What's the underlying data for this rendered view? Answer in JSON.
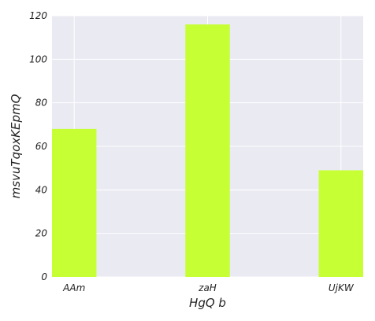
{
  "chart_data": {
    "type": "bar",
    "categories": [
      "AAm",
      "zaH",
      "UjKW"
    ],
    "values": [
      68,
      116,
      49
    ],
    "xlabel": "HgQ b",
    "ylabel": "msvuTqoxKEpmQ",
    "ylim": [
      0,
      120
    ],
    "yticks": [
      0,
      20,
      40,
      60,
      80,
      100,
      120
    ],
    "grid": true,
    "bar_color": "#c6ff33",
    "plot_background": "#eaeaf2",
    "grid_color": "#ffffff"
  }
}
